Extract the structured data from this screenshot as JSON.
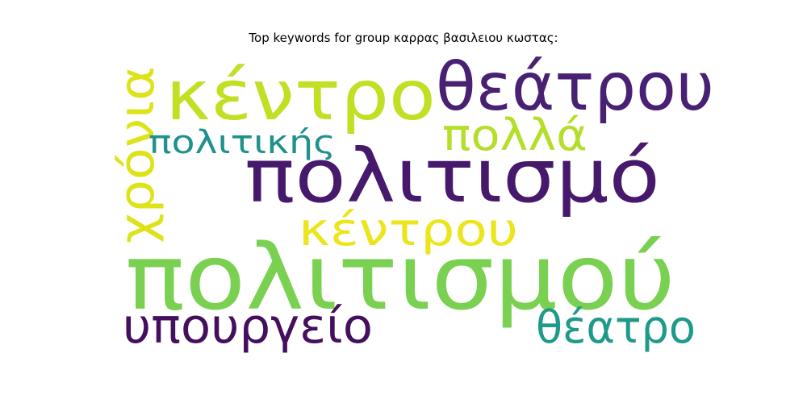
{
  "title": "Top keywords for group καρρας βασιλειου κωστας:",
  "words": [
    {
      "text": "πολιτισμού",
      "color": "#7ad151"
    },
    {
      "text": "πολιτισμό",
      "color": "#46196c"
    },
    {
      "text": "κέντρο",
      "color": "#c2df23"
    },
    {
      "text": "θεάτρου",
      "color": "#482173"
    },
    {
      "text": "υπουργείο",
      "color": "#440f5c"
    },
    {
      "text": "θέατρο",
      "color": "#1f9a8a"
    },
    {
      "text": "κέντρου",
      "color": "#ece51b"
    },
    {
      "text": "χρόνια",
      "color": "#dde318"
    },
    {
      "text": "πολλά",
      "color": "#b5de2b"
    },
    {
      "text": "πολιτικής",
      "color": "#21918c"
    }
  ]
}
